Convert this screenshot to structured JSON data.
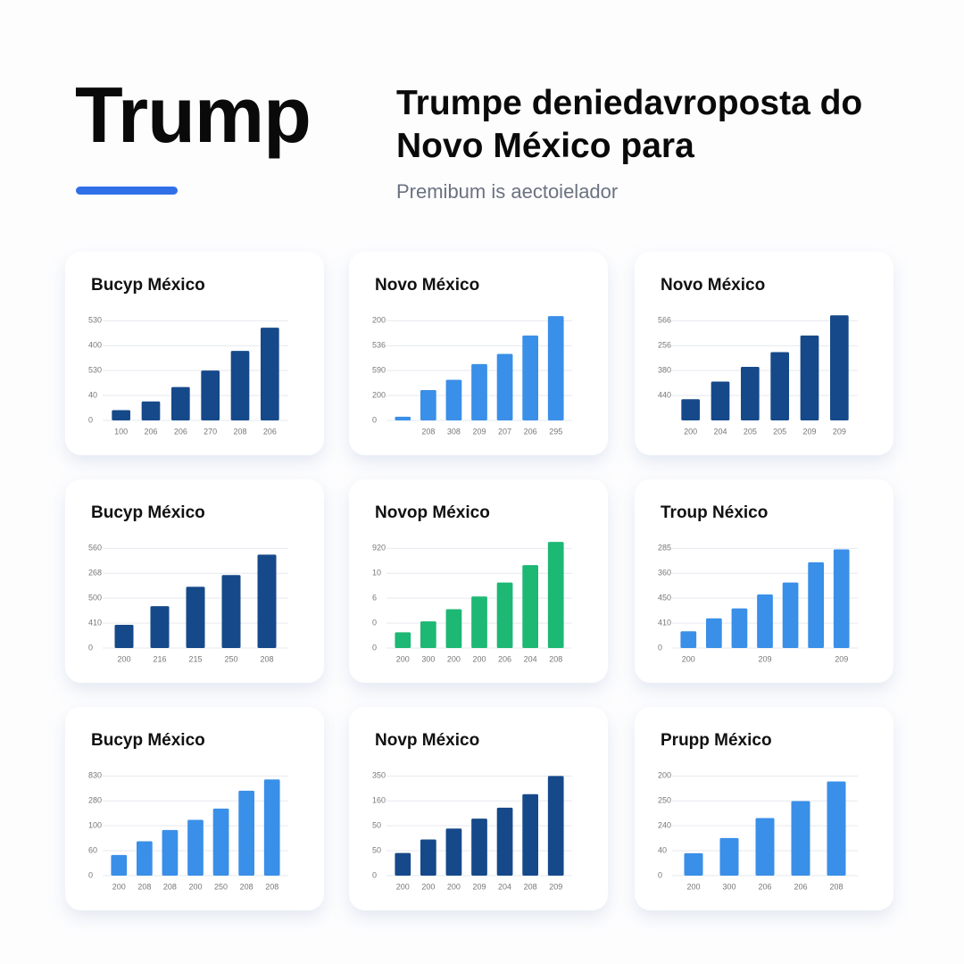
{
  "header": {
    "title": "Trump",
    "headline": "Trumpe deniedavroposta do Novo México para",
    "subtitle": "Premibum is aectoielador"
  },
  "chart_data": [
    {
      "type": "bar",
      "title": "Bucyp México",
      "color": "#16498a",
      "categories": [
        "100",
        "206",
        "206",
        "270",
        "208",
        "206"
      ],
      "values": [
        0.41,
        0.76,
        1.34,
        2.0,
        2.79,
        3.72
      ],
      "ylim": [
        0,
        4.3
      ],
      "yticks": [
        {
          "value": 0,
          "label": "0"
        },
        {
          "value": 1,
          "label": "40"
        },
        {
          "value": 2,
          "label": "530"
        },
        {
          "value": 3,
          "label": "400"
        },
        {
          "value": 4,
          "label": "530"
        }
      ]
    },
    {
      "type": "bar",
      "title": "Novo México",
      "color": "#3a8fe8",
      "categories": [
        null,
        "208",
        "308",
        "209",
        "207",
        "206",
        "295"
      ],
      "values": [
        0.15,
        1.22,
        1.63,
        2.26,
        2.67,
        3.41,
        4.19
      ],
      "ylim": [
        0,
        4.3
      ],
      "yticks": [
        {
          "value": 0,
          "label": "0"
        },
        {
          "value": 1,
          "label": "200"
        },
        {
          "value": 2,
          "label": "590"
        },
        {
          "value": 3,
          "label": "536"
        },
        {
          "value": 4,
          "label": "200"
        }
      ]
    },
    {
      "type": "bar",
      "title": "Novo México",
      "color": "#16498a",
      "categories": [
        "200",
        "204",
        "205",
        "205",
        "209",
        "209"
      ],
      "values": [
        0.85,
        1.56,
        2.15,
        2.74,
        3.41,
        4.22
      ],
      "ylim": [
        0,
        4.3
      ],
      "yticks": [
        {
          "value": 1,
          "label": "440"
        },
        {
          "value": 2,
          "label": "380"
        },
        {
          "value": 3,
          "label": "256"
        },
        {
          "value": 4,
          "label": "566"
        }
      ]
    },
    {
      "type": "bar",
      "title": "Bucyp México",
      "color": "#16498a",
      "categories": [
        "200",
        "216",
        "215",
        "250",
        "208"
      ],
      "values": [
        0.93,
        1.68,
        2.46,
        2.93,
        3.75
      ],
      "ylim": [
        0,
        4.3
      ],
      "yticks": [
        {
          "value": 0,
          "label": "0"
        },
        {
          "value": 1,
          "label": "410"
        },
        {
          "value": 2,
          "label": "500"
        },
        {
          "value": 3,
          "label": "268"
        },
        {
          "value": 4,
          "label": "560"
        }
      ]
    },
    {
      "type": "bar",
      "title": "Novop México",
      "color": "#1db874",
      "categories": [
        "200",
        "300",
        "200",
        "200",
        "206",
        "204",
        "208"
      ],
      "values": [
        0.63,
        1.07,
        1.56,
        2.07,
        2.63,
        3.33,
        4.26
      ],
      "ylim": [
        0,
        4.3
      ],
      "yticks": [
        {
          "value": 0,
          "label": "0"
        },
        {
          "value": 1,
          "label": "0"
        },
        {
          "value": 2,
          "label": "6"
        },
        {
          "value": 3,
          "label": "10"
        },
        {
          "value": 4,
          "label": "920"
        }
      ]
    },
    {
      "type": "bar",
      "title": "Troup Néxico",
      "color": "#3a8fe8",
      "categories": [
        "200",
        null,
        null,
        "209",
        null,
        null,
        "209"
      ],
      "values": [
        0.67,
        1.19,
        1.59,
        2.15,
        2.63,
        3.44,
        3.96
      ],
      "ylim": [
        0,
        4.3
      ],
      "yticks": [
        {
          "value": 0,
          "label": "0"
        },
        {
          "value": 1,
          "label": "410"
        },
        {
          "value": 2,
          "label": "450"
        },
        {
          "value": 3,
          "label": "360"
        },
        {
          "value": 4,
          "label": "285"
        }
      ]
    },
    {
      "type": "bar",
      "title": "Bucyp México",
      "color": "#3a8fe8",
      "categories": [
        "200",
        "208",
        "208",
        "200",
        "250",
        "208",
        "208"
      ],
      "values": [
        0.83,
        1.38,
        1.83,
        2.24,
        2.69,
        3.41,
        3.86
      ],
      "ylim": [
        0,
        4.3
      ],
      "yticks": [
        {
          "value": 0,
          "label": "0"
        },
        {
          "value": 1,
          "label": "60"
        },
        {
          "value": 2,
          "label": "100"
        },
        {
          "value": 3,
          "label": "280"
        },
        {
          "value": 4,
          "label": "830"
        }
      ]
    },
    {
      "type": "bar",
      "title": "Novp México",
      "color": "#16498a",
      "categories": [
        "200",
        "200",
        "200",
        "209",
        "204",
        "208",
        "209"
      ],
      "values": [
        0.91,
        1.45,
        1.89,
        2.29,
        2.73,
        3.27,
        4.0
      ],
      "ylim": [
        0,
        4.3
      ],
      "yticks": [
        {
          "value": 0,
          "label": "0"
        },
        {
          "value": 1,
          "label": "50"
        },
        {
          "value": 2,
          "label": "50"
        },
        {
          "value": 3,
          "label": "160"
        },
        {
          "value": 4,
          "label": "350"
        }
      ]
    },
    {
      "type": "bar",
      "title": "Prupp México",
      "color": "#3a8fe8",
      "categories": [
        "200",
        "300",
        "206",
        "206",
        "208"
      ],
      "values": [
        0.9,
        1.51,
        2.31,
        2.99,
        3.78
      ],
      "ylim": [
        0,
        4.3
      ],
      "yticks": [
        {
          "value": 0,
          "label": "0"
        },
        {
          "value": 1,
          "label": "40"
        },
        {
          "value": 2,
          "label": "240"
        },
        {
          "value": 3,
          "label": "250"
        },
        {
          "value": 4,
          "label": "200"
        }
      ]
    }
  ]
}
